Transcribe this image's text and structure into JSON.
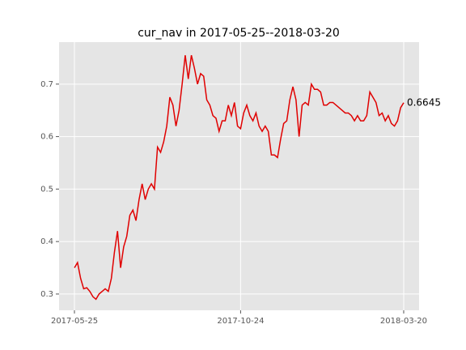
{
  "chart_data": {
    "type": "line",
    "title": "cur_nav in 2017-05-25--2018-03-20",
    "series": [
      {
        "name": "cur_nav",
        "color": "#e00000",
        "values": [
          0.35,
          0.36,
          0.33,
          0.31,
          0.312,
          0.305,
          0.295,
          0.29,
          0.3,
          0.305,
          0.31,
          0.305,
          0.33,
          0.38,
          0.42,
          0.35,
          0.39,
          0.41,
          0.45,
          0.46,
          0.44,
          0.48,
          0.51,
          0.48,
          0.5,
          0.51,
          0.5,
          0.58,
          0.57,
          0.59,
          0.62,
          0.675,
          0.66,
          0.62,
          0.65,
          0.7,
          0.755,
          0.71,
          0.755,
          0.73,
          0.7,
          0.72,
          0.715,
          0.67,
          0.66,
          0.64,
          0.635,
          0.61,
          0.63,
          0.63,
          0.66,
          0.64,
          0.665,
          0.62,
          0.615,
          0.645,
          0.66,
          0.64,
          0.63,
          0.645,
          0.62,
          0.61,
          0.62,
          0.61,
          0.565,
          0.565,
          0.56,
          0.595,
          0.625,
          0.63,
          0.67,
          0.695,
          0.67,
          0.6,
          0.66,
          0.665,
          0.66,
          0.7,
          0.69,
          0.69,
          0.685,
          0.66,
          0.66,
          0.665,
          0.665,
          0.66,
          0.655,
          0.65,
          0.645,
          0.645,
          0.64,
          0.63,
          0.64,
          0.63,
          0.63,
          0.64,
          0.685,
          0.675,
          0.665,
          0.64,
          0.645,
          0.63,
          0.64,
          0.625,
          0.62,
          0.63,
          0.655,
          0.6645
        ]
      }
    ],
    "annotation": "0.6645",
    "xlim": [
      -5,
      112
    ],
    "xticks": [
      {
        "value": 0,
        "label": "2017-05-25"
      },
      {
        "value": 54,
        "label": "2017-10-24"
      },
      {
        "value": 107,
        "label": "2018-03-20"
      }
    ],
    "ylim": [
      0.269,
      0.78
    ],
    "yticks": [
      0.3,
      0.4,
      0.5,
      0.6,
      0.7
    ],
    "grid": true
  }
}
